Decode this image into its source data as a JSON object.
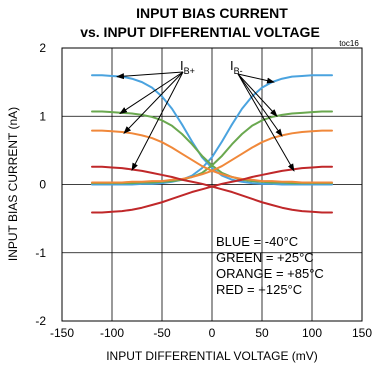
{
  "chart_data": {
    "type": "line",
    "title": "INPUT BIAS CURRENT",
    "subtitle": "vs. INPUT DIFFERENTIAL VOLTAGE",
    "tag": "toc16",
    "xlabel": "INPUT DIFFERENTIAL VOLTAGE (mV)",
    "ylabel": "INPUT BIAS CURRENT (nA)",
    "xlim": [
      -150,
      150
    ],
    "ylim": [
      -2,
      2
    ],
    "xticks": [
      "-150",
      "-100",
      "-50",
      "0",
      "50",
      "100",
      "150"
    ],
    "yticks": [
      "2",
      "1",
      "0",
      "-1",
      "-2"
    ],
    "grid": true,
    "annotations": {
      "ib_plus": {
        "main": "I",
        "sub": "B+"
      },
      "ib_minus": {
        "main": "I",
        "sub": "B-"
      }
    },
    "legend_lines": [
      "BLUE = -40°C",
      "GREEN = +25°C",
      "ORANGE = +85°C",
      "RED = +125°C"
    ],
    "x": [
      -120,
      -110,
      -100,
      -90,
      -80,
      -70,
      -60,
      -50,
      -40,
      -30,
      -20,
      -10,
      0,
      10,
      20,
      30,
      40,
      50,
      60,
      70,
      80,
      90,
      100,
      110,
      120
    ],
    "series": [
      {
        "color": "#4aa3df",
        "values": [
          1.6,
          1.6,
          1.59,
          1.58,
          1.55,
          1.5,
          1.42,
          1.29,
          1.11,
          0.88,
          0.63,
          0.4,
          0.24,
          0.13,
          0.07,
          0.04,
          0.02,
          0.01,
          0.01,
          0.0,
          0.0,
          0.0,
          0.0,
          0.0,
          0.0
        ]
      },
      {
        "color": "#4aa3df",
        "values": [
          0.0,
          0.0,
          0.0,
          0.0,
          0.0,
          0.01,
          0.01,
          0.02,
          0.04,
          0.07,
          0.13,
          0.24,
          0.4,
          0.63,
          0.88,
          1.11,
          1.29,
          1.42,
          1.5,
          1.55,
          1.58,
          1.59,
          1.6,
          1.6,
          1.6
        ]
      },
      {
        "color": "#6aa84f",
        "values": [
          1.07,
          1.07,
          1.06,
          1.05,
          1.04,
          1.02,
          0.99,
          0.94,
          0.86,
          0.74,
          0.59,
          0.42,
          0.28,
          0.17,
          0.11,
          0.07,
          0.05,
          0.04,
          0.03,
          0.03,
          0.02,
          0.02,
          0.02,
          0.02,
          0.02
        ]
      },
      {
        "color": "#6aa84f",
        "values": [
          0.02,
          0.02,
          0.02,
          0.02,
          0.02,
          0.03,
          0.03,
          0.04,
          0.05,
          0.07,
          0.11,
          0.17,
          0.28,
          0.42,
          0.59,
          0.74,
          0.86,
          0.94,
          0.99,
          1.02,
          1.04,
          1.05,
          1.06,
          1.07,
          1.07
        ]
      },
      {
        "color": "#f0883a",
        "values": [
          0.79,
          0.79,
          0.78,
          0.77,
          0.75,
          0.72,
          0.68,
          0.62,
          0.54,
          0.45,
          0.36,
          0.27,
          0.2,
          0.15,
          0.11,
          0.08,
          0.07,
          0.05,
          0.05,
          0.04,
          0.04,
          0.03,
          0.03,
          0.03,
          0.03
        ]
      },
      {
        "color": "#f0883a",
        "values": [
          0.03,
          0.03,
          0.03,
          0.03,
          0.04,
          0.04,
          0.05,
          0.05,
          0.07,
          0.08,
          0.11,
          0.15,
          0.2,
          0.27,
          0.36,
          0.45,
          0.54,
          0.62,
          0.68,
          0.72,
          0.75,
          0.77,
          0.78,
          0.79,
          0.79
        ]
      },
      {
        "color": "#c0282a",
        "values": [
          0.26,
          0.26,
          0.25,
          0.24,
          0.22,
          0.2,
          0.17,
          0.14,
          0.11,
          0.07,
          0.04,
          0.01,
          -0.03,
          -0.07,
          -0.11,
          -0.16,
          -0.21,
          -0.26,
          -0.3,
          -0.34,
          -0.37,
          -0.39,
          -0.4,
          -0.41,
          -0.41
        ]
      },
      {
        "color": "#c0282a",
        "values": [
          -0.41,
          -0.41,
          -0.4,
          -0.39,
          -0.37,
          -0.34,
          -0.3,
          -0.26,
          -0.21,
          -0.16,
          -0.11,
          -0.07,
          -0.03,
          0.01,
          0.04,
          0.07,
          0.11,
          0.14,
          0.17,
          0.2,
          0.22,
          0.24,
          0.25,
          0.26,
          0.26
        ]
      }
    ],
    "arrows": {
      "ib_plus_targets": [
        [
          -95,
          1.58
        ],
        [
          -92,
          1.04
        ],
        [
          -88,
          0.75
        ],
        [
          -80,
          0.21
        ]
      ],
      "ib_minus_targets": [
        [
          62,
          1.5
        ],
        [
          65,
          1.0
        ],
        [
          70,
          0.71
        ],
        [
          82,
          0.2
        ]
      ]
    }
  }
}
